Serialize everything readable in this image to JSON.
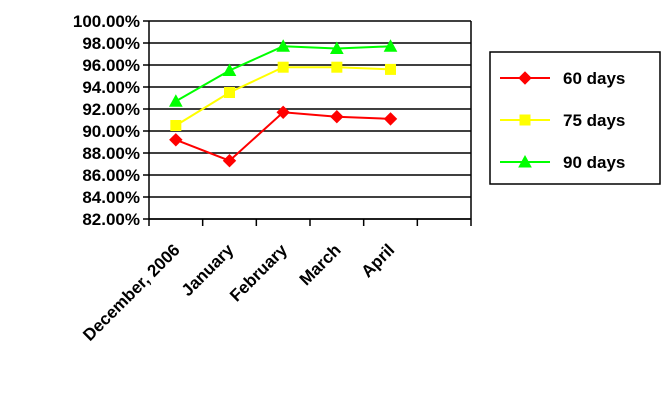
{
  "chart_data": {
    "type": "line",
    "title": "",
    "xlabel": "",
    "ylabel": "",
    "categories": [
      "December, 2006",
      "January",
      "February",
      "March",
      "April"
    ],
    "ylim": [
      82,
      100
    ],
    "yticks": [
      "82.00%",
      "84.00%",
      "86.00%",
      "88.00%",
      "90.00%",
      "92.00%",
      "94.00%",
      "96.00%",
      "98.00%",
      "100.00%"
    ],
    "grid": true,
    "legend_position": "right",
    "series": [
      {
        "name": "60 days",
        "color": "#ff0000",
        "marker": "diamond",
        "values": [
          89.2,
          87.3,
          91.7,
          91.3,
          91.1
        ]
      },
      {
        "name": "75 days",
        "color": "#ffff00",
        "marker": "square",
        "values": [
          90.5,
          93.5,
          95.8,
          95.8,
          95.6
        ]
      },
      {
        "name": "90 days",
        "color": "#00ff00",
        "marker": "triangle",
        "values": [
          92.7,
          95.5,
          97.7,
          97.5,
          97.7
        ]
      }
    ]
  }
}
